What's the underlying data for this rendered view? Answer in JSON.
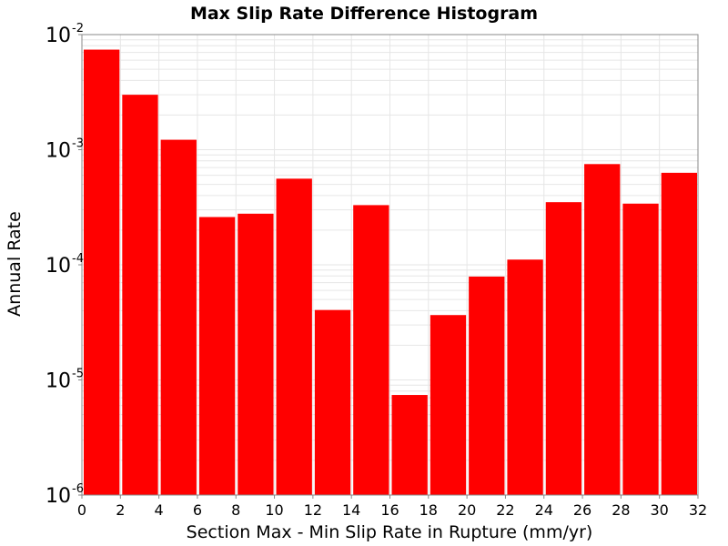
{
  "chart_data": {
    "type": "bar",
    "title": "Max Slip Rate Difference Histogram",
    "xlabel": "Section Max - Min Slip Rate in Rupture (mm/yr)",
    "ylabel": "Annual Rate",
    "x_scale": "linear",
    "y_scale": "log",
    "xlim": [
      0,
      32
    ],
    "ylim": [
      1e-06,
      0.01
    ],
    "bin_width": 2,
    "x_ticks": [
      0,
      2,
      4,
      6,
      8,
      10,
      12,
      14,
      16,
      18,
      20,
      22,
      24,
      26,
      28,
      30,
      32
    ],
    "y_ticks": [
      {
        "value": 0.01,
        "base": "10",
        "exp": "-2"
      },
      {
        "value": 0.001,
        "base": "10",
        "exp": "-3"
      },
      {
        "value": 0.0001,
        "base": "10",
        "exp": "-4"
      },
      {
        "value": 1e-05,
        "base": "10",
        "exp": "-5"
      },
      {
        "value": 1e-06,
        "base": "10",
        "exp": "-6"
      }
    ],
    "bars": [
      {
        "x_start": 0,
        "value": 0.0074
      },
      {
        "x_start": 2,
        "value": 0.003
      },
      {
        "x_start": 4,
        "value": 0.00122
      },
      {
        "x_start": 6,
        "value": 0.00026
      },
      {
        "x_start": 8,
        "value": 0.000278
      },
      {
        "x_start": 10,
        "value": 0.00056
      },
      {
        "x_start": 12,
        "value": 4.05e-05
      },
      {
        "x_start": 14,
        "value": 0.00033
      },
      {
        "x_start": 16,
        "value": 7.4e-06
      },
      {
        "x_start": 18,
        "value": 3.66e-05
      },
      {
        "x_start": 20,
        "value": 7.9e-05
      },
      {
        "x_start": 22,
        "value": 0.000111
      },
      {
        "x_start": 24,
        "value": 0.00035
      },
      {
        "x_start": 26,
        "value": 0.00075
      },
      {
        "x_start": 28,
        "value": 0.00034
      },
      {
        "x_start": 30,
        "value": 0.00063
      }
    ],
    "bar_color": "#ff0000",
    "grid": true,
    "grid_color": "#e6e6e6",
    "legend": "none"
  }
}
